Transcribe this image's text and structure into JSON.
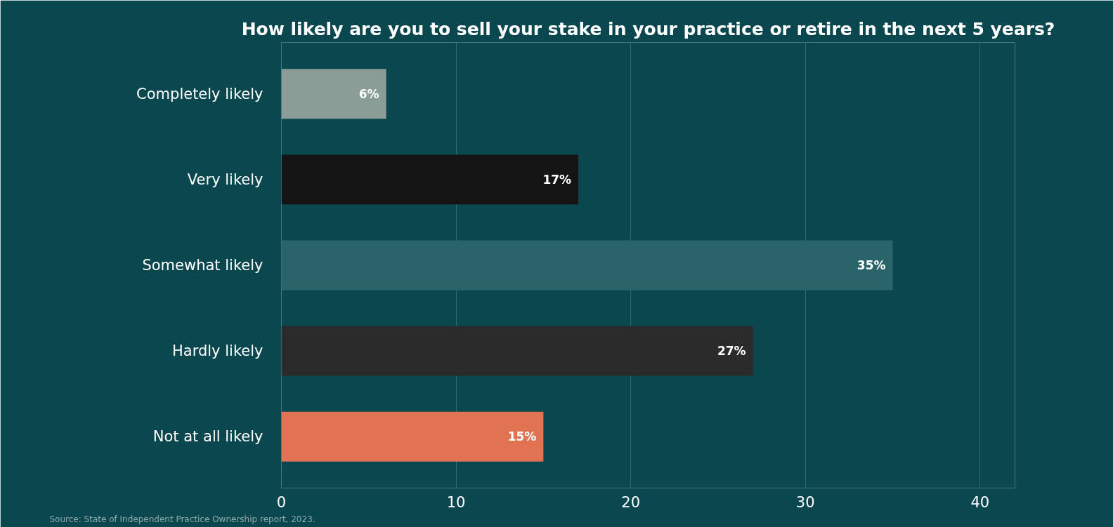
{
  "chart_data": {
    "type": "bar",
    "orientation": "horizontal",
    "title": "How likely are you to sell your stake in your practice or retire in the next 5 years?",
    "categories": [
      "Completely likely",
      "Very likely",
      "Somewhat likely",
      "Hardly likely",
      "Not at all likely"
    ],
    "values": [
      6,
      17,
      35,
      27,
      15
    ],
    "colors": [
      "#8a9e97",
      "#141414",
      "#2a6469",
      "#2b2b2b",
      "#e07352"
    ],
    "value_labels": [
      "6%",
      "17%",
      "35%",
      "27%",
      "15%"
    ],
    "xlim": [
      0,
      42
    ],
    "xticks": [
      0,
      10,
      20,
      30,
      40
    ],
    "grid": "x",
    "annotations": [
      "Source: State of Independent Practice Ownership report, 2023."
    ]
  }
}
